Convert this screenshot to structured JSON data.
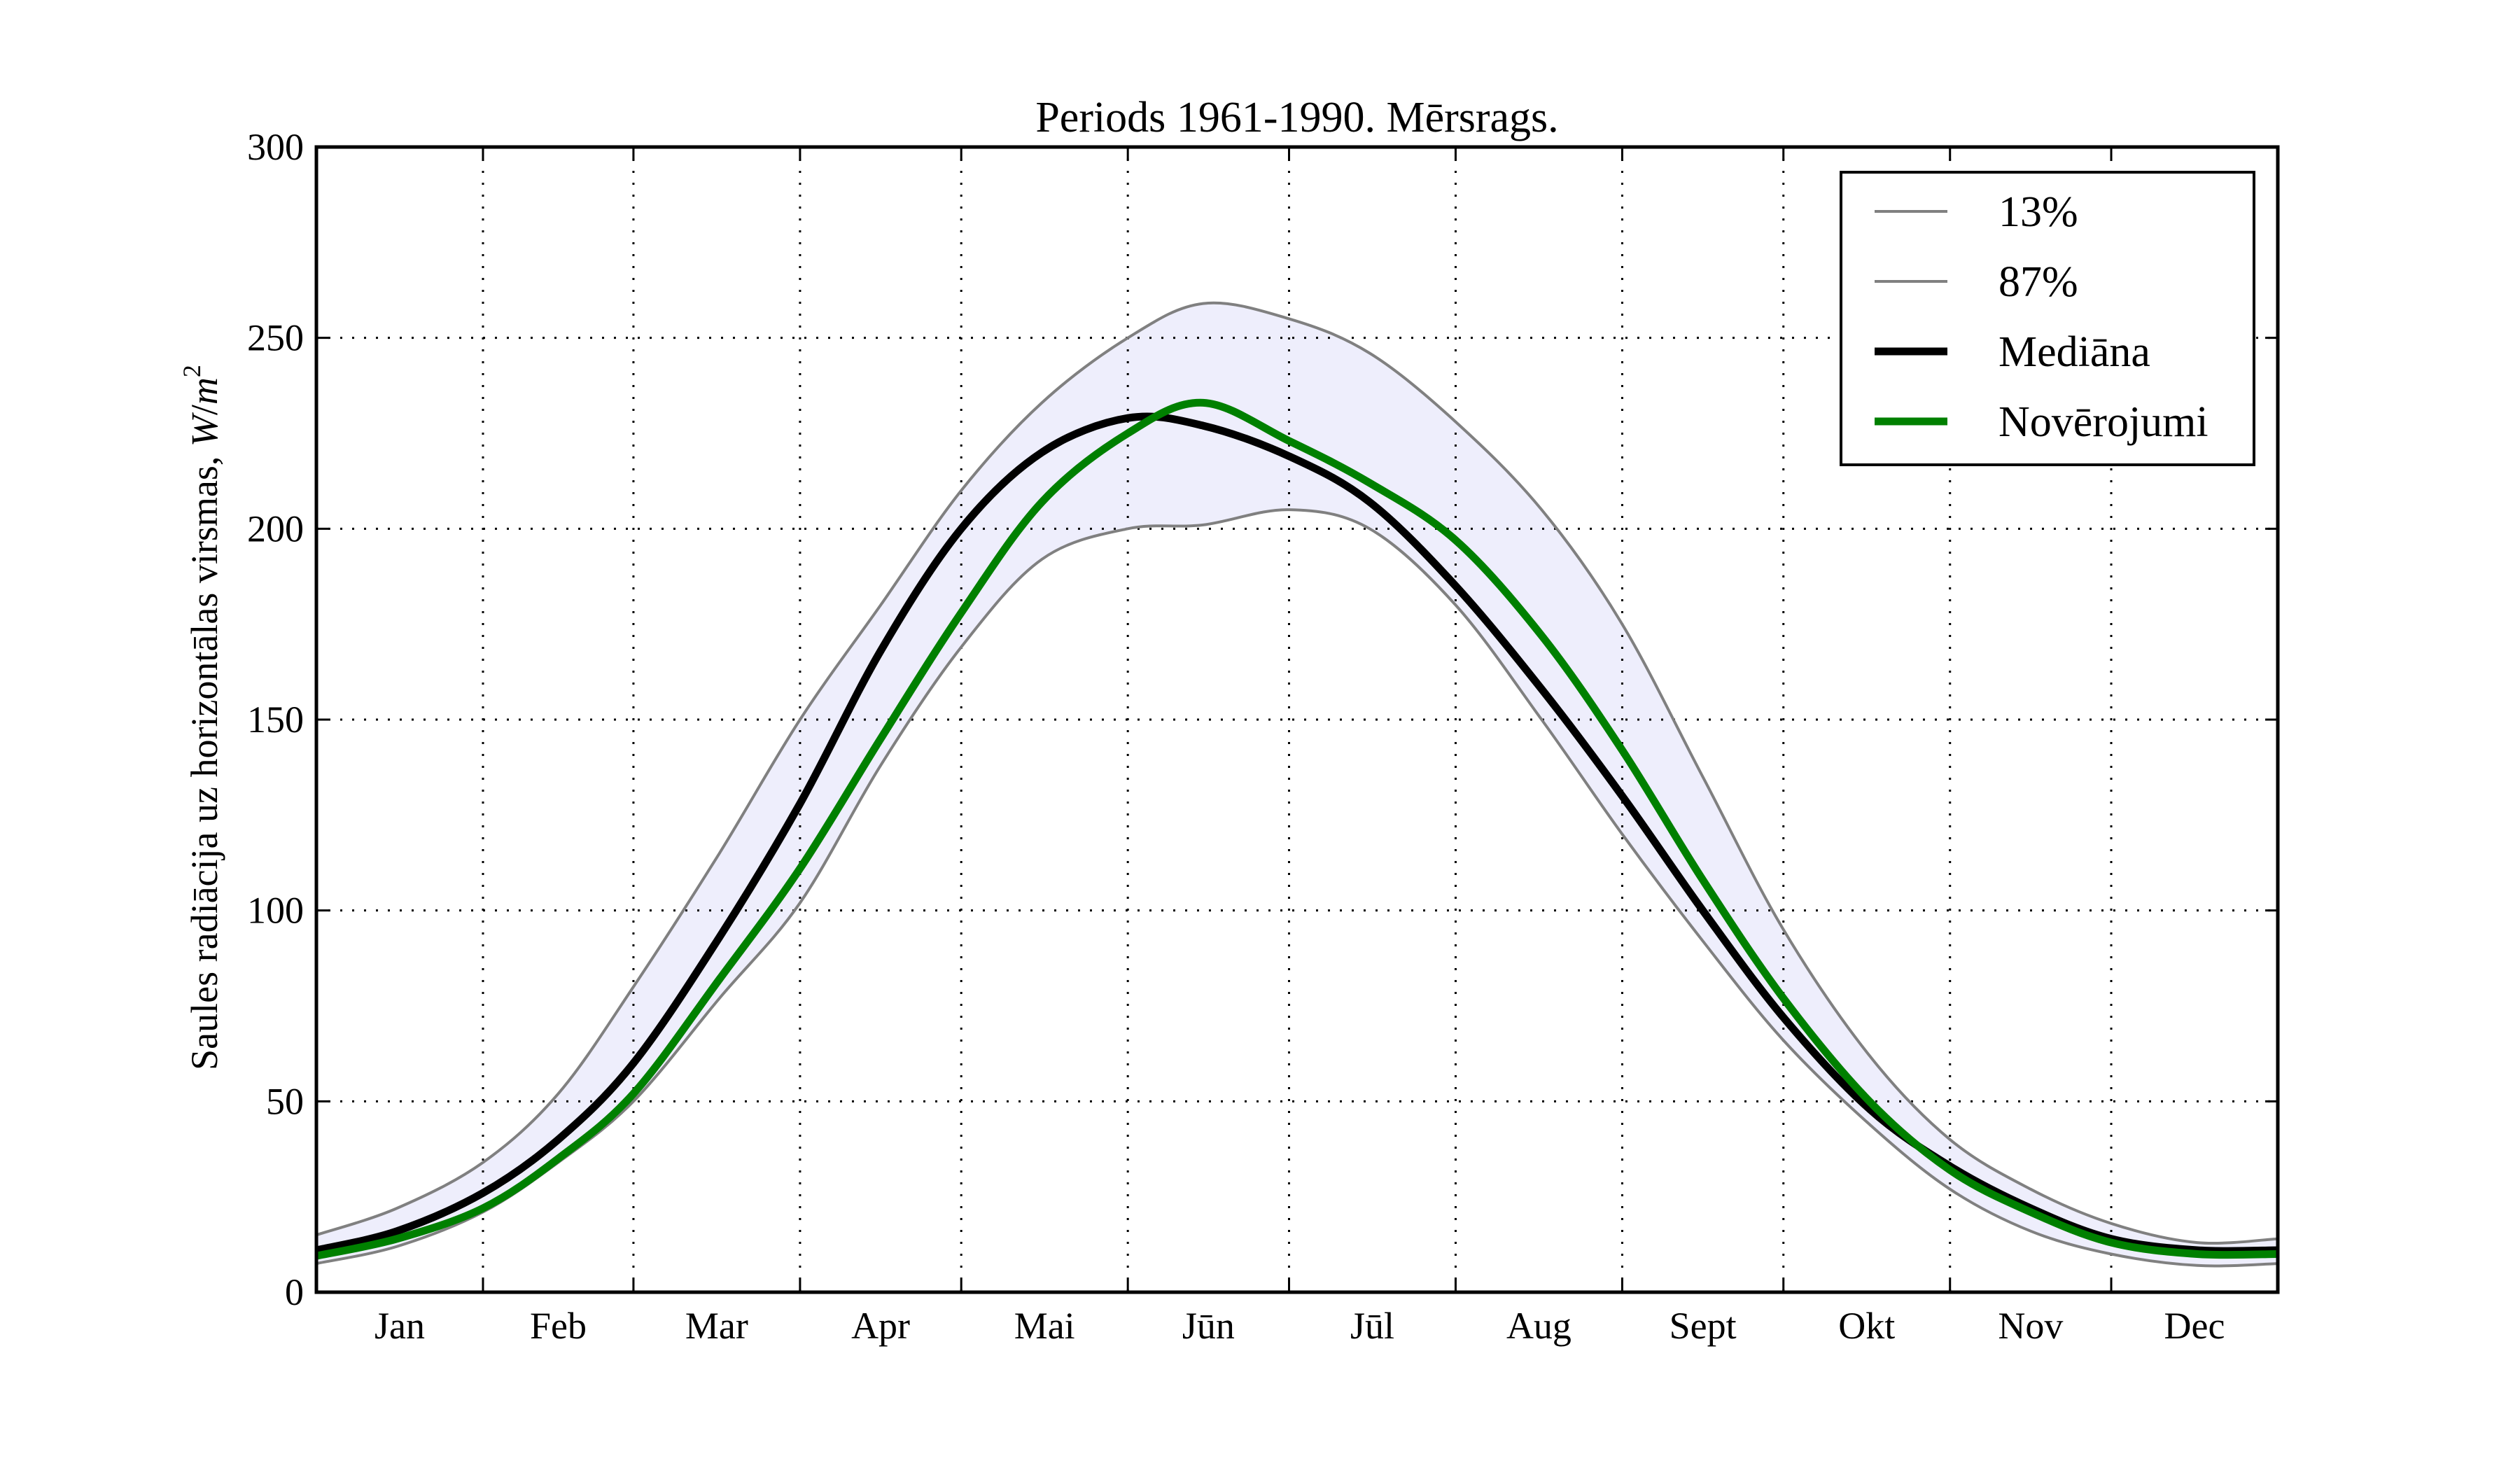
{
  "chart_data": {
    "type": "line",
    "title": "Periods 1961-1990. Mērsrags.",
    "xlabel": "",
    "ylabel": "Saules radiācija uz horizontālas virsmas, W/m²",
    "ylabel_main": "Saules radiācija uz horizontālas virsmas, ",
    "ylabel_unit_w": "W",
    "ylabel_unit_slash": "/",
    "ylabel_unit_m": "m",
    "ylabel_unit_exp": "2",
    "xlim": [
      0,
      365
    ],
    "ylim": [
      0,
      300
    ],
    "yticks": [
      0,
      50,
      100,
      150,
      200,
      250,
      300
    ],
    "ytick_labels": [
      "0",
      "50",
      "100",
      "150",
      "200",
      "250",
      "300"
    ],
    "month_boundaries": [
      31,
      59,
      90,
      120,
      151,
      181,
      212,
      243,
      273,
      304,
      334
    ],
    "month_label_positions": [
      15.5,
      45,
      74.5,
      105,
      135.5,
      166,
      196.5,
      227.5,
      258,
      288.5,
      319,
      349.5
    ],
    "month_labels": [
      "Jan",
      "Feb",
      "Mar",
      "Apr",
      "Mai",
      "Jūn",
      "Jūl",
      "Aug",
      "Sept",
      "Okt",
      "Nov",
      "Dec"
    ],
    "grid": true,
    "legend_position": "top-right",
    "x": [
      0,
      15,
      31,
      45,
      59,
      75,
      90,
      105,
      120,
      135,
      151,
      165,
      181,
      196,
      212,
      228,
      243,
      258,
      273,
      289,
      304,
      319,
      334,
      350,
      365
    ],
    "series": [
      {
        "name": "13%",
        "color": "#808080",
        "role": "band-lower",
        "values": [
          7.5,
          12,
          21,
          34,
          50,
          77,
          102,
          138,
          169,
          192,
          200,
          201,
          205,
          200,
          180,
          150,
          120,
          92,
          66,
          44,
          27,
          16,
          10,
          7,
          7.5
        ]
      },
      {
        "name": "87%",
        "color": "#808080",
        "role": "band-upper",
        "values": [
          15,
          22,
          34,
          52,
          80,
          115,
          150,
          180,
          210,
          233,
          250,
          259,
          255,
          246,
          228,
          205,
          175,
          135,
          95,
          62,
          40,
          27,
          18,
          13,
          14
        ]
      },
      {
        "name": "Mediāna",
        "color": "#000000",
        "role": "line",
        "values": [
          11,
          16,
          26,
          40,
          60,
          93,
          128,
          168,
          200,
          220,
          229,
          227,
          219,
          207,
          185,
          158,
          130,
          100,
          72,
          48,
          33,
          22,
          14,
          11,
          11
        ]
      },
      {
        "name": "Novērojumi",
        "color": "#008000",
        "role": "line",
        "values": [
          9.5,
          14,
          22,
          35,
          52,
          82,
          111,
          145,
          178,
          207,
          225,
          233,
          223,
          212,
          197,
          172,
          142,
          108,
          77,
          50,
          32,
          21,
          13,
          10,
          10
        ]
      }
    ],
    "band_fill_color": "#eeeefc"
  }
}
